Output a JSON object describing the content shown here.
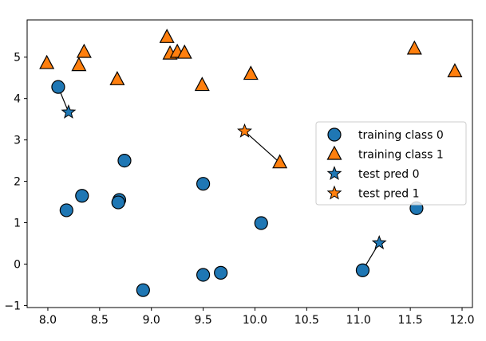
{
  "chart_data": {
    "type": "scatter",
    "title": "",
    "xlabel": "",
    "ylabel": "",
    "xlim": [
      7.8,
      12.1
    ],
    "ylim": [
      -1.05,
      5.9
    ],
    "xticks": [
      "8.0",
      "8.5",
      "9.0",
      "9.5",
      "10.0",
      "10.5",
      "11.0",
      "11.5",
      "12.0"
    ],
    "yticks": [
      "−1",
      "0",
      "1",
      "2",
      "3",
      "4",
      "5"
    ],
    "grid": false,
    "legend_position": "right",
    "colors": {
      "class0": "#1f77b4",
      "class1": "#ff7f0e"
    },
    "series": [
      {
        "name": "training class 0",
        "marker": "circle",
        "color": "#1f77b4",
        "points": [
          [
            8.1,
            4.28
          ],
          [
            8.18,
            1.3
          ],
          [
            8.33,
            1.65
          ],
          [
            8.69,
            1.55
          ],
          [
            8.68,
            1.49
          ],
          [
            8.74,
            2.5
          ],
          [
            8.92,
            -0.63
          ],
          [
            9.5,
            1.94
          ],
          [
            9.5,
            -0.26
          ],
          [
            9.67,
            -0.21
          ],
          [
            10.06,
            0.99
          ],
          [
            11.04,
            -0.15
          ],
          [
            11.56,
            1.35
          ]
        ]
      },
      {
        "name": "training class 1",
        "marker": "triangle",
        "color": "#ff7f0e",
        "points": [
          [
            7.99,
            4.85
          ],
          [
            8.3,
            4.8
          ],
          [
            8.35,
            5.12
          ],
          [
            8.67,
            4.46
          ],
          [
            9.15,
            5.48
          ],
          [
            9.18,
            5.08
          ],
          [
            9.25,
            5.12
          ],
          [
            9.32,
            5.1
          ],
          [
            9.49,
            4.32
          ],
          [
            9.96,
            4.59
          ],
          [
            10.24,
            2.45
          ],
          [
            11.54,
            5.2
          ],
          [
            11.93,
            4.65
          ]
        ]
      },
      {
        "name": "test pred 0",
        "marker": "star",
        "color": "#1f77b4",
        "points": [
          [
            8.2,
            3.67
          ],
          [
            11.2,
            0.51
          ]
        ]
      },
      {
        "name": "test pred 1",
        "marker": "star",
        "color": "#ff7f0e",
        "points": [
          [
            9.9,
            3.21
          ]
        ]
      }
    ],
    "neighbor_links": [
      {
        "from": [
          8.2,
          3.67
        ],
        "to": [
          8.1,
          4.28
        ]
      },
      {
        "from": [
          9.9,
          3.21
        ],
        "to": [
          10.24,
          2.45
        ]
      },
      {
        "from": [
          11.2,
          0.51
        ],
        "to": [
          11.04,
          -0.15
        ]
      }
    ]
  }
}
